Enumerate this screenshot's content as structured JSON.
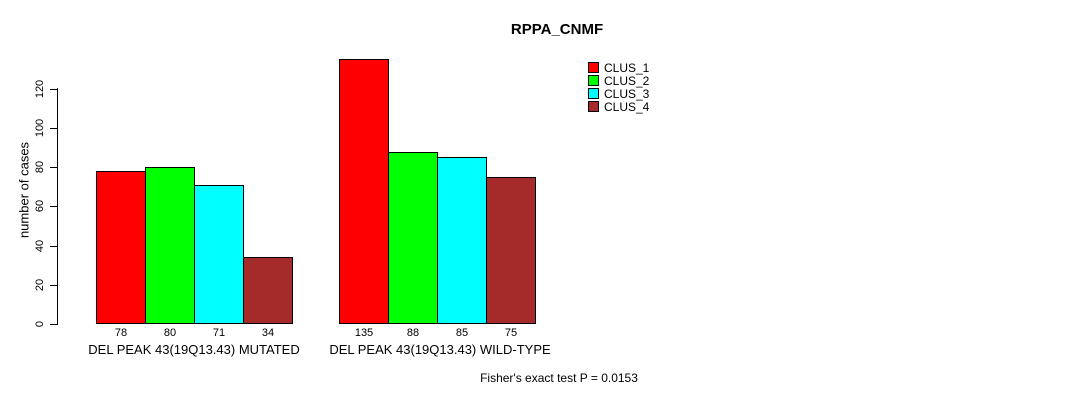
{
  "title": "RPPA_CNMF",
  "ylabel": "number of cases",
  "footer": "Fisher's exact test P = 0.0153",
  "chart_data": {
    "type": "bar",
    "title": "RPPA_CNMF",
    "xlabel": "",
    "ylabel": "number of cases",
    "categories": [
      "DEL PEAK 43(19Q13.43) MUTATED",
      "DEL PEAK 43(19Q13.43) WILD-TYPE"
    ],
    "series": [
      {
        "name": "CLUS_1",
        "color": "#ff0000",
        "values": [
          78,
          135
        ]
      },
      {
        "name": "CLUS_2",
        "color": "#00ff00",
        "values": [
          80,
          88
        ]
      },
      {
        "name": "CLUS_3",
        "color": "#00ffff",
        "values": [
          71,
          85
        ]
      },
      {
        "name": "CLUS_4",
        "color": "#a52a2a",
        "values": [
          34,
          75
        ]
      }
    ],
    "bar_value_labels": [
      [
        78,
        80,
        71,
        34
      ],
      [
        135,
        88,
        85,
        75
      ]
    ],
    "yticks": [
      0,
      20,
      40,
      60,
      80,
      100,
      120
    ],
    "ylim": [
      0,
      135
    ],
    "grid": false,
    "legend_position": "top-right",
    "annotation": "Fisher's exact test P = 0.0153"
  }
}
